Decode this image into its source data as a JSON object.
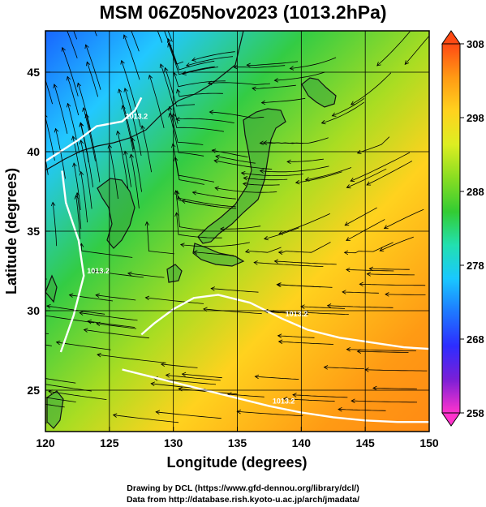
{
  "title": "MSM 06Z05Nov2023 (1013.2hPa)",
  "chart_data": {
    "type": "heatmap",
    "title": "MSM 06Z05Nov2023 (1013.2hPa)",
    "xlabel": "Longitude (degrees)",
    "ylabel": "Latitude  (degrees)",
    "xlim": [
      120,
      150
    ],
    "ylim": [
      22.4,
      47.6
    ],
    "xticks": [
      120,
      125,
      130,
      135,
      140,
      145,
      150
    ],
    "yticks": [
      25,
      30,
      35,
      40,
      45
    ],
    "grid": true,
    "colorbar": {
      "min": 258,
      "max": 308,
      "ticks": [
        258,
        268,
        278,
        288,
        298,
        308
      ],
      "orientation": "vertical",
      "position": "right"
    },
    "contour_label": "1013.2",
    "contour_series": [
      {
        "x": [
          120,
          122.5,
          124,
          126,
          127,
          127.5
        ],
        "y": [
          39.4,
          40.7,
          41.6,
          41.9,
          42.6,
          43.4
        ]
      },
      {
        "x": [
          127.5,
          128.5,
          130,
          131.6,
          133.5,
          136,
          138.5,
          140.5,
          143,
          145.5,
          148,
          150
        ],
        "y": [
          28.5,
          29.2,
          30.1,
          30.8,
          31.0,
          30.5,
          29.5,
          28.8,
          28.3,
          28.0,
          27.7,
          27.6
        ]
      },
      {
        "x": [
          126,
          127.5,
          130,
          132.5,
          135,
          137.5,
          140,
          142.5,
          145,
          147.5,
          150
        ],
        "y": [
          26.3,
          26.0,
          25.5,
          25.0,
          24.5,
          24.0,
          23.6,
          23.3,
          23.1,
          23.0,
          23.0
        ]
      },
      {
        "x": [
          121.3,
          121.6,
          122.6,
          123.0,
          122.2,
          121.2
        ],
        "y": [
          38.8,
          36.8,
          34.4,
          32.2,
          29.7,
          27.4
        ]
      }
    ],
    "annotations": [
      "1013.2",
      "1013.2",
      "1013.2",
      "1013.2"
    ]
  },
  "colors": {
    "ramp": [
      "#ff33cc",
      "#7a1fd6",
      "#2d2dff",
      "#1e78ff",
      "#19c8ff",
      "#22e0b0",
      "#33cc33",
      "#88dd22",
      "#ddee22",
      "#ffd21e",
      "#ff9a14",
      "#ff4a14"
    ],
    "isobar": "#ffffff",
    "streamline": "#000000",
    "land": "#3aa63a"
  },
  "footer": {
    "line1": "Drawing by DCL (https://www.gfd-dennou.org/library/dcl/)",
    "line2": "Data from http://database.rish.kyoto-u.ac.jp/arch/jmadata/"
  }
}
